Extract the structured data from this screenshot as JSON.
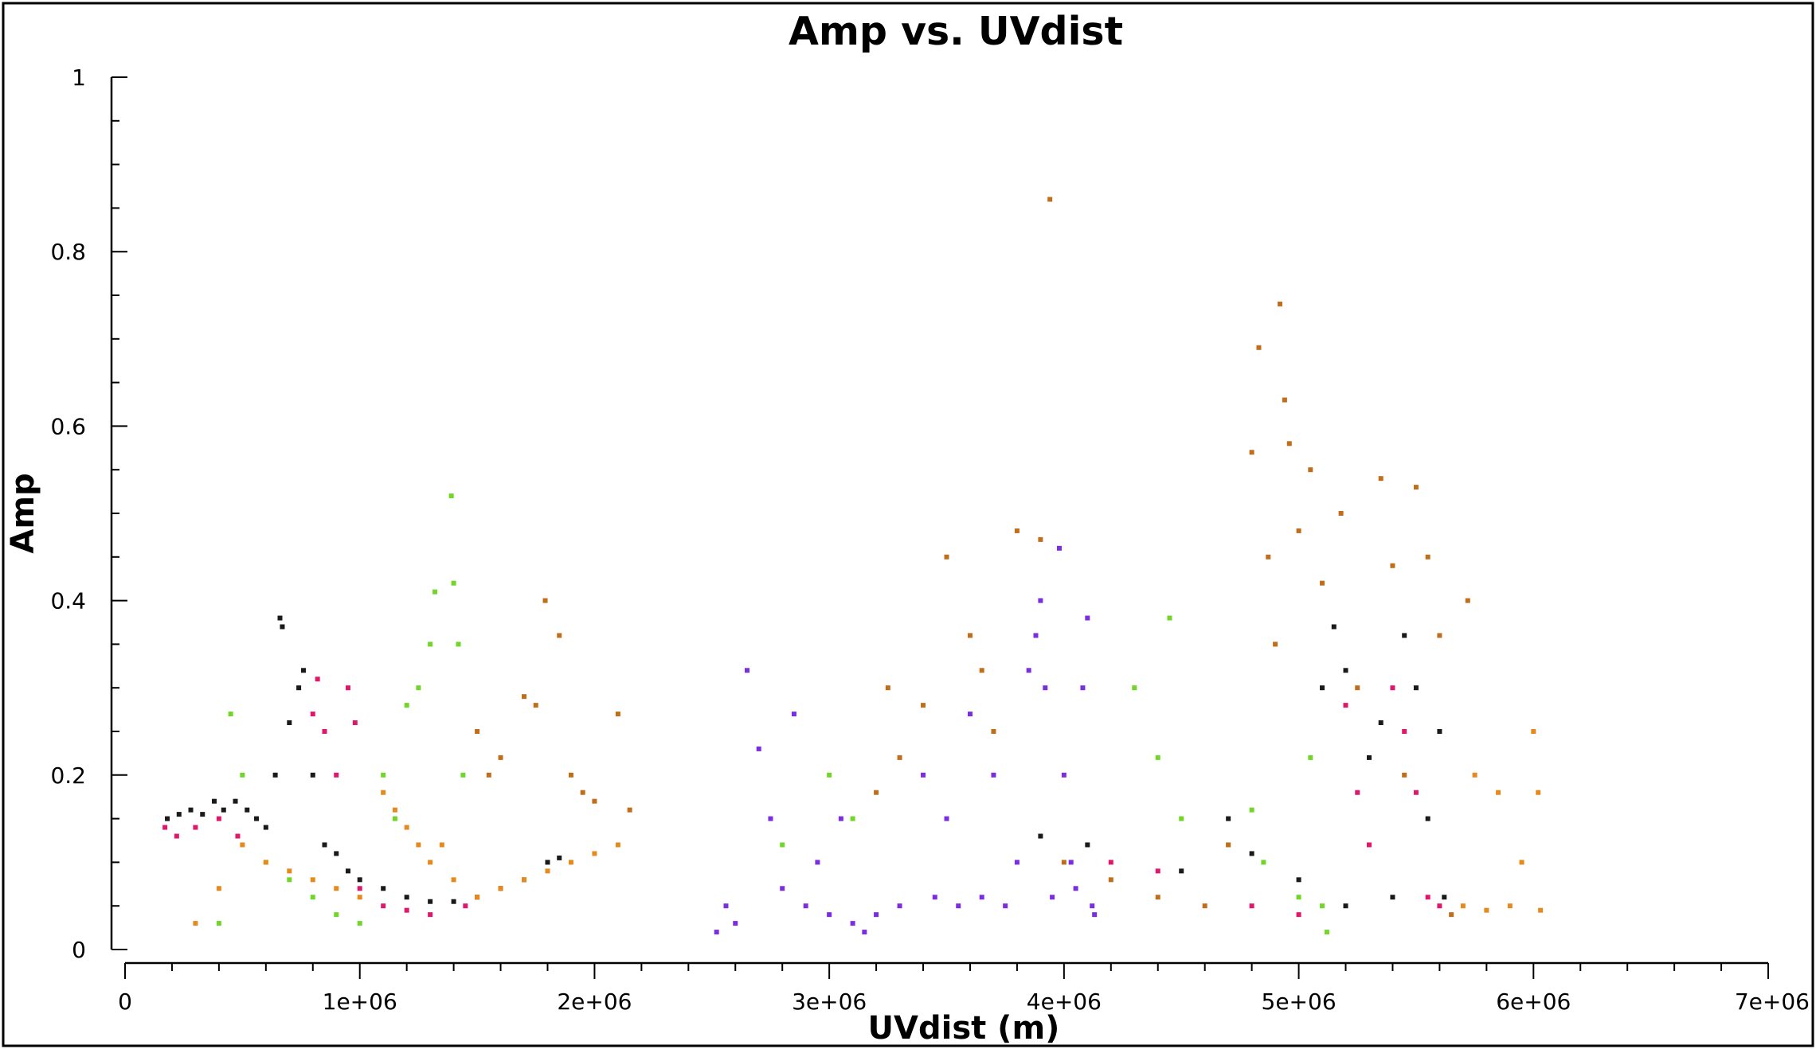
{
  "chart_data": {
    "type": "scatter",
    "title": "Amp vs. UVdist",
    "xlabel": "UVdist (m)",
    "ylabel": "Amp",
    "xlim": [
      0,
      7000000
    ],
    "ylim": [
      0,
      1
    ],
    "x_ticks": [
      0,
      1000000,
      2000000,
      3000000,
      4000000,
      5000000,
      6000000,
      7000000
    ],
    "x_tick_labels": [
      "0",
      "1e+06",
      "2e+06",
      "3e+06",
      "4e+06",
      "5e+06",
      "6e+06",
      "7e+06"
    ],
    "y_ticks": [
      0,
      0.2,
      0.4,
      0.6,
      0.8,
      1
    ],
    "y_tick_labels": [
      "0",
      "0.2",
      "0.4",
      "0.6",
      "0.8",
      "1"
    ],
    "grid": false,
    "legend": "none",
    "series": [
      {
        "color": "#1a1a1a",
        "points": [
          [
            180000,
            0.15
          ],
          [
            230000,
            0.155
          ],
          [
            280000,
            0.16
          ],
          [
            330000,
            0.155
          ],
          [
            380000,
            0.17
          ],
          [
            420000,
            0.16
          ],
          [
            470000,
            0.17
          ],
          [
            520000,
            0.16
          ],
          [
            560000,
            0.15
          ],
          [
            600000,
            0.14
          ],
          [
            640000,
            0.2
          ],
          [
            660000,
            0.38
          ],
          [
            670000,
            0.37
          ],
          [
            700000,
            0.26
          ],
          [
            740000,
            0.3
          ],
          [
            760000,
            0.32
          ],
          [
            800000,
            0.2
          ],
          [
            850000,
            0.12
          ],
          [
            900000,
            0.11
          ],
          [
            950000,
            0.09
          ],
          [
            1000000,
            0.08
          ],
          [
            1100000,
            0.07
          ],
          [
            1200000,
            0.06
          ],
          [
            1300000,
            0.055
          ],
          [
            1400000,
            0.055
          ],
          [
            1500000,
            0.06
          ],
          [
            1600000,
            0.07
          ],
          [
            1700000,
            0.08
          ],
          [
            1800000,
            0.1
          ],
          [
            1850000,
            0.105
          ],
          [
            3900000,
            0.13
          ],
          [
            4100000,
            0.12
          ],
          [
            4500000,
            0.09
          ],
          [
            4700000,
            0.15
          ],
          [
            4800000,
            0.11
          ],
          [
            5000000,
            0.08
          ],
          [
            5100000,
            0.3
          ],
          [
            5150000,
            0.37
          ],
          [
            5200000,
            0.32
          ],
          [
            5200000,
            0.05
          ],
          [
            5300000,
            0.22
          ],
          [
            5350000,
            0.26
          ],
          [
            5400000,
            0.06
          ],
          [
            5450000,
            0.36
          ],
          [
            5500000,
            0.3
          ],
          [
            5550000,
            0.15
          ],
          [
            5600000,
            0.25
          ],
          [
            5620000,
            0.06
          ]
        ]
      },
      {
        "color": "#e0186b",
        "points": [
          [
            170000,
            0.14
          ],
          [
            220000,
            0.13
          ],
          [
            300000,
            0.14
          ],
          [
            400000,
            0.15
          ],
          [
            480000,
            0.13
          ],
          [
            800000,
            0.27
          ],
          [
            820000,
            0.31
          ],
          [
            850000,
            0.25
          ],
          [
            900000,
            0.2
          ],
          [
            950000,
            0.3
          ],
          [
            980000,
            0.26
          ],
          [
            1000000,
            0.07
          ],
          [
            1100000,
            0.05
          ],
          [
            1200000,
            0.045
          ],
          [
            1300000,
            0.04
          ],
          [
            1450000,
            0.05
          ],
          [
            4200000,
            0.1
          ],
          [
            4400000,
            0.09
          ],
          [
            4800000,
            0.05
          ],
          [
            5000000,
            0.04
          ],
          [
            5200000,
            0.28
          ],
          [
            5250000,
            0.18
          ],
          [
            5300000,
            0.12
          ],
          [
            5400000,
            0.3
          ],
          [
            5450000,
            0.25
          ],
          [
            5500000,
            0.18
          ],
          [
            5550000,
            0.06
          ],
          [
            5600000,
            0.05
          ]
        ]
      },
      {
        "color": "#71d52a",
        "points": [
          [
            400000,
            0.03
          ],
          [
            450000,
            0.27
          ],
          [
            500000,
            0.2
          ],
          [
            600000,
            0.1
          ],
          [
            700000,
            0.08
          ],
          [
            800000,
            0.06
          ],
          [
            900000,
            0.04
          ],
          [
            1000000,
            0.03
          ],
          [
            1100000,
            0.2
          ],
          [
            1150000,
            0.15
          ],
          [
            1200000,
            0.28
          ],
          [
            1250000,
            0.3
          ],
          [
            1300000,
            0.35
          ],
          [
            1320000,
            0.41
          ],
          [
            1390000,
            0.52
          ],
          [
            1400000,
            0.42
          ],
          [
            1420000,
            0.35
          ],
          [
            1440000,
            0.2
          ],
          [
            2800000,
            0.12
          ],
          [
            3000000,
            0.2
          ],
          [
            3100000,
            0.15
          ],
          [
            4300000,
            0.3
          ],
          [
            4400000,
            0.22
          ],
          [
            4450000,
            0.38
          ],
          [
            4500000,
            0.15
          ],
          [
            4700000,
            0.12
          ],
          [
            4800000,
            0.16
          ],
          [
            4850000,
            0.1
          ],
          [
            5000000,
            0.06
          ],
          [
            5050000,
            0.22
          ],
          [
            5100000,
            0.05
          ],
          [
            5120000,
            0.02
          ]
        ]
      },
      {
        "color": "#e58a1f",
        "points": [
          [
            300000,
            0.03
          ],
          [
            400000,
            0.07
          ],
          [
            500000,
            0.12
          ],
          [
            600000,
            0.1
          ],
          [
            700000,
            0.09
          ],
          [
            800000,
            0.08
          ],
          [
            900000,
            0.07
          ],
          [
            1000000,
            0.06
          ],
          [
            1100000,
            0.18
          ],
          [
            1150000,
            0.16
          ],
          [
            1200000,
            0.14
          ],
          [
            1250000,
            0.12
          ],
          [
            1300000,
            0.1
          ],
          [
            1350000,
            0.12
          ],
          [
            1400000,
            0.08
          ],
          [
            1500000,
            0.06
          ],
          [
            1600000,
            0.07
          ],
          [
            1700000,
            0.08
          ],
          [
            1800000,
            0.09
          ],
          [
            1900000,
            0.1
          ],
          [
            2000000,
            0.11
          ],
          [
            2100000,
            0.12
          ],
          [
            5700000,
            0.05
          ],
          [
            5750000,
            0.2
          ],
          [
            5800000,
            0.045
          ],
          [
            5850000,
            0.18
          ],
          [
            5900000,
            0.05
          ],
          [
            5950000,
            0.1
          ],
          [
            6000000,
            0.25
          ],
          [
            6020000,
            0.18
          ],
          [
            6030000,
            0.045
          ]
        ]
      },
      {
        "color": "#bf6f1c",
        "points": [
          [
            1500000,
            0.25
          ],
          [
            1550000,
            0.2
          ],
          [
            1600000,
            0.22
          ],
          [
            1700000,
            0.29
          ],
          [
            1750000,
            0.28
          ],
          [
            1790000,
            0.4
          ],
          [
            1850000,
            0.36
          ],
          [
            1900000,
            0.2
          ],
          [
            1950000,
            0.18
          ],
          [
            2000000,
            0.17
          ],
          [
            2100000,
            0.27
          ],
          [
            2150000,
            0.16
          ],
          [
            3200000,
            0.18
          ],
          [
            3250000,
            0.3
          ],
          [
            3300000,
            0.22
          ],
          [
            3400000,
            0.28
          ],
          [
            3500000,
            0.45
          ],
          [
            3600000,
            0.36
          ],
          [
            3650000,
            0.32
          ],
          [
            3700000,
            0.25
          ],
          [
            3800000,
            0.48
          ],
          [
            3900000,
            0.47
          ],
          [
            3940000,
            0.86
          ],
          [
            4000000,
            0.1
          ],
          [
            4200000,
            0.08
          ],
          [
            4400000,
            0.06
          ],
          [
            4600000,
            0.05
          ],
          [
            4700000,
            0.12
          ],
          [
            4800000,
            0.57
          ],
          [
            4830000,
            0.69
          ],
          [
            4870000,
            0.45
          ],
          [
            4900000,
            0.35
          ],
          [
            4920000,
            0.74
          ],
          [
            4940000,
            0.63
          ],
          [
            4960000,
            0.58
          ],
          [
            5000000,
            0.48
          ],
          [
            5050000,
            0.55
          ],
          [
            5100000,
            0.42
          ],
          [
            5180000,
            0.5
          ],
          [
            5250000,
            0.3
          ],
          [
            5350000,
            0.54
          ],
          [
            5400000,
            0.44
          ],
          [
            5450000,
            0.2
          ],
          [
            5500000,
            0.53
          ],
          [
            5550000,
            0.45
          ],
          [
            5600000,
            0.36
          ],
          [
            5650000,
            0.04
          ],
          [
            5720000,
            0.4
          ]
        ]
      },
      {
        "color": "#7a2ee0",
        "points": [
          [
            2520000,
            0.02
          ],
          [
            2560000,
            0.05
          ],
          [
            2600000,
            0.03
          ],
          [
            2650000,
            0.32
          ],
          [
            2700000,
            0.23
          ],
          [
            2750000,
            0.15
          ],
          [
            2800000,
            0.07
          ],
          [
            2850000,
            0.27
          ],
          [
            2900000,
            0.05
          ],
          [
            2950000,
            0.1
          ],
          [
            3000000,
            0.04
          ],
          [
            3050000,
            0.15
          ],
          [
            3100000,
            0.03
          ],
          [
            3150000,
            0.02
          ],
          [
            3200000,
            0.04
          ],
          [
            3300000,
            0.05
          ],
          [
            3400000,
            0.2
          ],
          [
            3450000,
            0.06
          ],
          [
            3500000,
            0.15
          ],
          [
            3550000,
            0.05
          ],
          [
            3600000,
            0.27
          ],
          [
            3650000,
            0.06
          ],
          [
            3700000,
            0.2
          ],
          [
            3750000,
            0.05
          ],
          [
            3800000,
            0.1
          ],
          [
            3850000,
            0.32
          ],
          [
            3880000,
            0.36
          ],
          [
            3900000,
            0.4
          ],
          [
            3920000,
            0.3
          ],
          [
            3950000,
            0.06
          ],
          [
            3980000,
            0.46
          ],
          [
            4000000,
            0.2
          ],
          [
            4030000,
            0.1
          ],
          [
            4050000,
            0.07
          ],
          [
            4080000,
            0.3
          ],
          [
            4100000,
            0.38
          ],
          [
            4120000,
            0.05
          ],
          [
            4130000,
            0.04
          ]
        ]
      }
    ]
  }
}
